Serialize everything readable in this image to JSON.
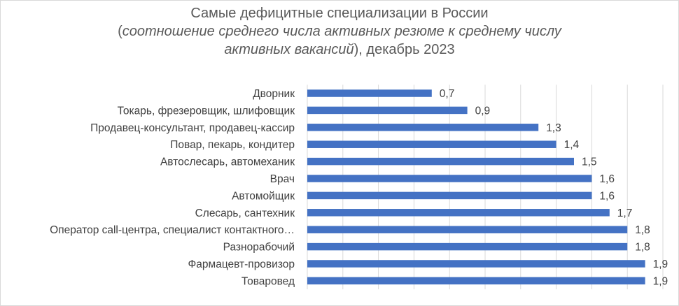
{
  "title": {
    "line1": "Самые дефицитные специализации в России",
    "line2_open": "(",
    "line2_italic": "соотношение среднего числа активных резюме к среднему числу",
    "line3_italic": "активных вакансий",
    "line3_rest": "), декабрь 2023"
  },
  "chart_data": {
    "type": "bar",
    "orientation": "horizontal",
    "title": "Самые дефицитные специализации в России (соотношение среднего числа активных резюме к среднему числу активных вакансий), декабрь 2023",
    "categories": [
      "Дворник",
      "Токарь, фрезеровщик, шлифовщик",
      "Продавец-консультант, продавец-кассир",
      "Повар, пекарь, кондитер",
      "Автослесарь, автомеханик",
      "Врач",
      "Автомойщик",
      "Слесарь, сантехник",
      "Оператор call-центра, специалист контактного…",
      "Разнорабочий",
      "Фармацевт-провизор",
      "Товаровед"
    ],
    "values": [
      0.7,
      0.9,
      1.3,
      1.4,
      1.5,
      1.6,
      1.6,
      1.7,
      1.8,
      1.8,
      1.9,
      1.9
    ],
    "data_labels": [
      "0,7",
      "0,9",
      "1,3",
      "1,4",
      "1,5",
      "1,6",
      "1,6",
      "1,7",
      "1,8",
      "1,8",
      "1,9",
      "1,9"
    ],
    "xlim": [
      0,
      2
    ],
    "grid": true,
    "legend": "none",
    "colors": {
      "bar": "#4472c4",
      "grid": "#d9d9d9",
      "text": "#404040",
      "title": "#595959"
    }
  }
}
